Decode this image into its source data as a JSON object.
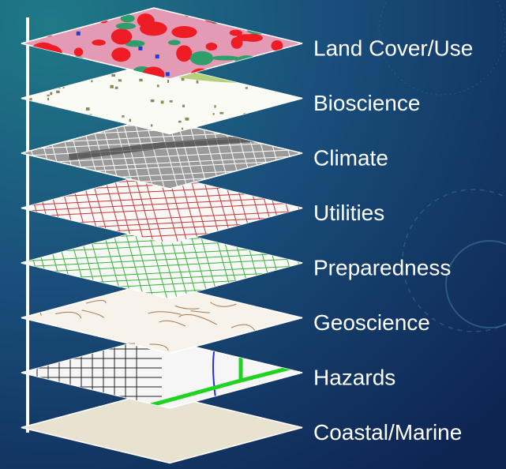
{
  "layers": [
    {
      "label": "Land Cover/Use"
    },
    {
      "label": "Bioscience"
    },
    {
      "label": "Climate"
    },
    {
      "label": "Utilities"
    },
    {
      "label": "Preparedness"
    },
    {
      "label": "Geoscience"
    },
    {
      "label": "Hazards"
    },
    {
      "label": "Coastal/Marine"
    }
  ]
}
